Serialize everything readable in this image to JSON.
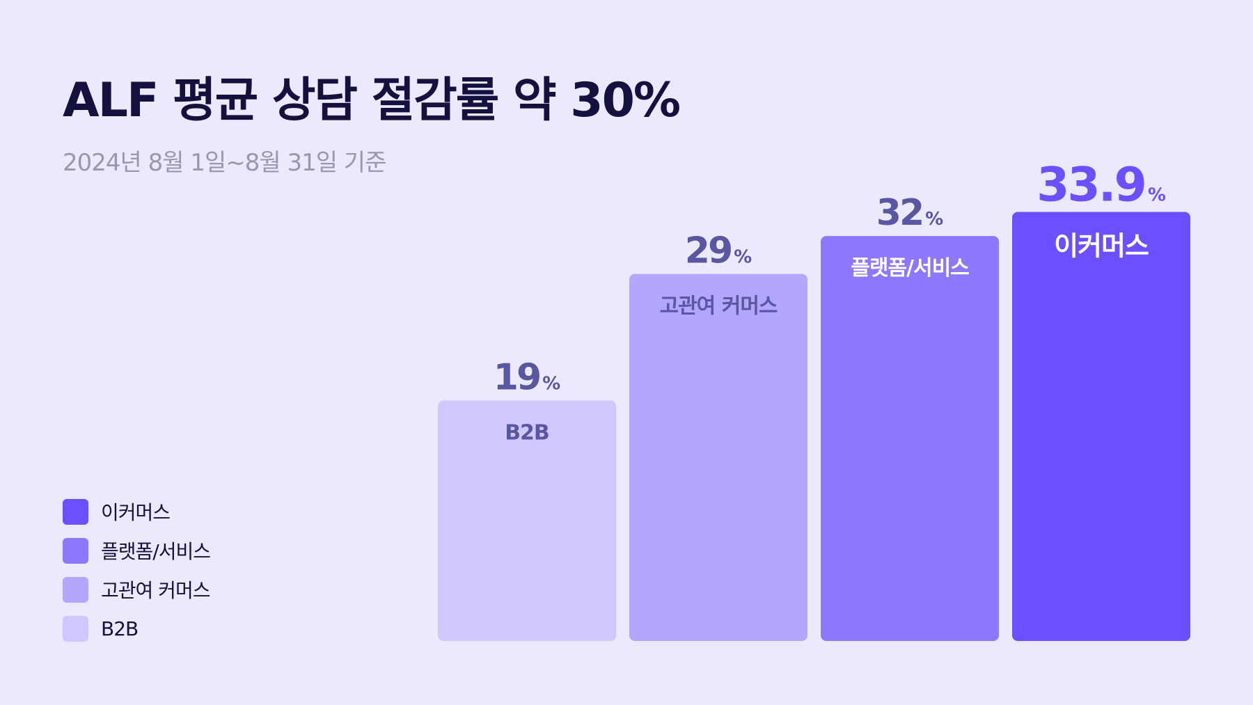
{
  "header": {
    "title": "ALF 평균 상담 절감률 약 30%",
    "subtitle": "2024년 8월 1일~8월 31일 기준"
  },
  "chart_data": {
    "type": "bar",
    "title": "ALF 평균 상담 절감률 약 30%",
    "subtitle": "2024년 8월 1일~8월 31일 기준",
    "categories": [
      "B2B",
      "고관여 커머스",
      "플랫폼/서비스",
      "이커머스"
    ],
    "values": [
      19,
      29,
      32,
      33.9
    ],
    "unit": "%",
    "value_labels": [
      "19",
      "29",
      "32",
      "33.9"
    ],
    "ylim": [
      0,
      38
    ],
    "grid": false,
    "legend_position": "bottom-left",
    "colors": [
      "#d0c8fd",
      "#b2a6fd",
      "#8c78fd",
      "#6a50fe"
    ],
    "value_label_colors": [
      "#5a57a2",
      "#5a57a2",
      "#5a57a2",
      "#6a50fe"
    ],
    "category_label_colors": [
      "#5a57a2",
      "#5a57a2",
      "#ffffff",
      "#ffffff"
    ]
  },
  "legend": {
    "items": [
      {
        "label": "이커머스",
        "color": "#6a50fe"
      },
      {
        "label": "플랫폼/서비스",
        "color": "#8c78fd"
      },
      {
        "label": "고관여 커머스",
        "color": "#b2a6fd"
      },
      {
        "label": "B2B",
        "color": "#d0c8fd"
      }
    ]
  }
}
